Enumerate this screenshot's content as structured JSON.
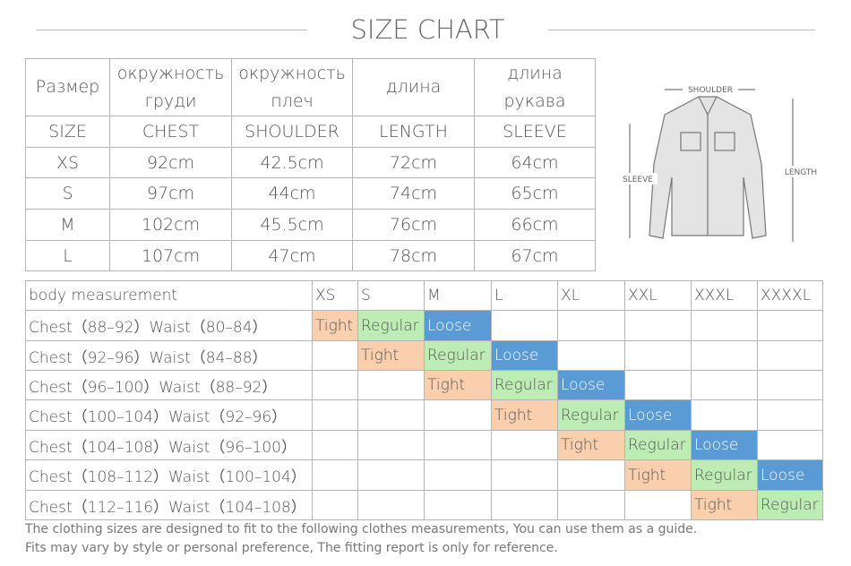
{
  "title": "SIZE CHART",
  "size_table": {
    "header_ru": [
      [
        "Размер"
      ],
      [
        "окружность",
        "груди"
      ],
      [
        "окружность",
        "плеч"
      ],
      [
        "длина"
      ],
      [
        "длина",
        "рукава"
      ]
    ],
    "header_en": [
      "SIZE",
      "CHEST",
      "SHOULDER",
      "LENGTH",
      "SLEEVE"
    ],
    "rows": [
      [
        "XS",
        "92cm",
        "42.5cm",
        "72cm",
        "64cm"
      ],
      [
        "S",
        "97cm",
        "44cm",
        "74cm",
        "65cm"
      ],
      [
        "M",
        "102cm",
        "45.5cm",
        "76cm",
        "66cm"
      ],
      [
        "L",
        "107cm",
        "47cm",
        "78cm",
        "67cm"
      ]
    ]
  },
  "diagram": {
    "shoulder": "SHOULDER",
    "sleeve": "SLEEVE",
    "length": "LENGTH"
  },
  "fit_table": {
    "header": [
      "body measurement",
      "XS",
      "S",
      "M",
      "L",
      "XL",
      "XXL",
      "XXXL",
      "XXXXL"
    ],
    "colors": {
      "Tight": "#f9cfae",
      "Regular": "#bdecb4",
      "Loose": "#5b9bd5"
    },
    "rows": [
      {
        "label": "Chest（88–92）Waist（80–84）",
        "fits": {
          "XS": "Tight",
          "S": "Regular",
          "M": "Loose"
        }
      },
      {
        "label": "Chest（92–96）Waist（84–88）",
        "fits": {
          "S": "Tight",
          "M": "Regular",
          "L": "Loose"
        }
      },
      {
        "label": "Chest（96–100）Waist（88–92）",
        "fits": {
          "M": "Tight",
          "L": "Regular",
          "XL": "Loose"
        }
      },
      {
        "label": "Chest（100–104）Waist（92–96）",
        "fits": {
          "L": "Tight",
          "XL": "Regular",
          "XXL": "Loose"
        }
      },
      {
        "label": "Chest（104–108）Waist（96–100）",
        "fits": {
          "XL": "Tight",
          "XXL": "Regular",
          "XXXL": "Loose"
        }
      },
      {
        "label": "Chest（108–112）Waist（100–104）",
        "fits": {
          "XXL": "Tight",
          "XXXL": "Regular",
          "XXXXL": "Loose"
        }
      },
      {
        "label": "Chest（112–116）Waist（104–108）",
        "fits": {
          "XXXL": "Tight",
          "XXXXL": "Regular"
        }
      }
    ]
  },
  "notes": [
    "The clothing sizes are designed to fit to the following clothes measurements, You can use them as a guide.",
    "Fits may vary by style or personal preference, The fitting report is only for reference."
  ]
}
